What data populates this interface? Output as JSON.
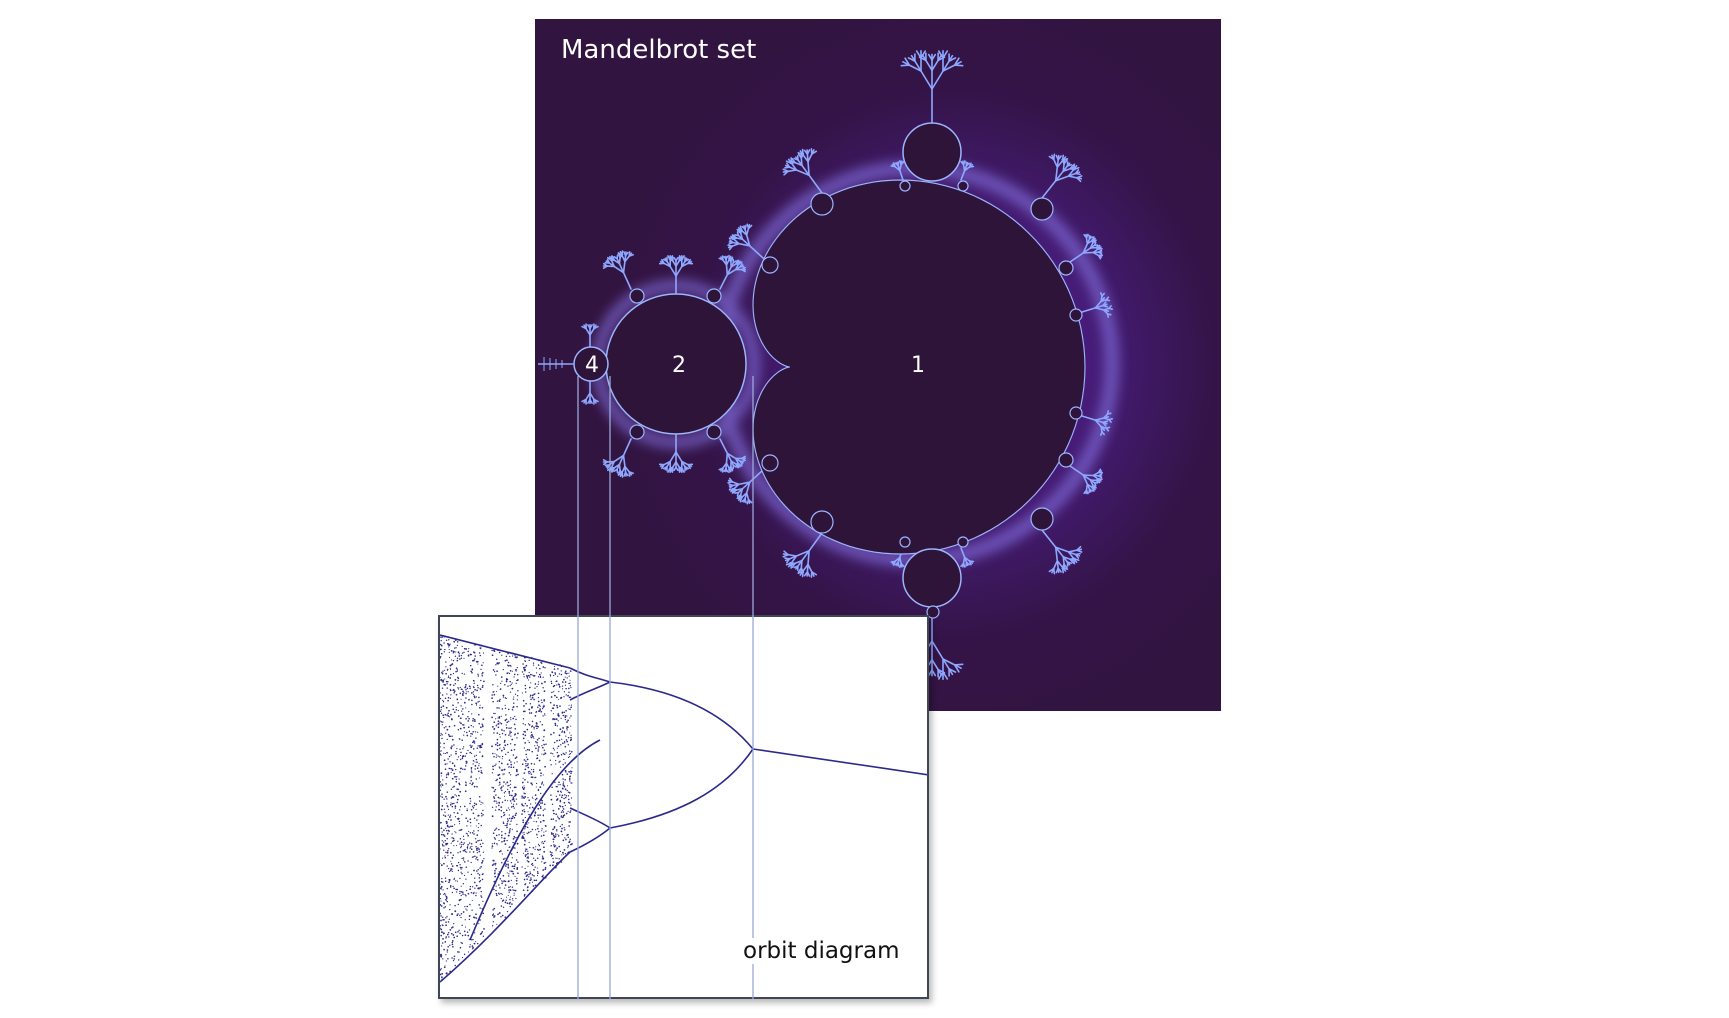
{
  "mandelbrot": {
    "title": "Mandelbrot set",
    "bulb_labels": [
      "1",
      "2",
      "4"
    ]
  },
  "orbit": {
    "title": "orbit diagram"
  },
  "colors": {
    "set_interior": "#2e1439",
    "background_outer": "#321440",
    "background_glow": "#5a2690",
    "fractal_edge": "#8fa8ff",
    "orbit_ink": "#2b2a8a",
    "guide_line": "#9aa8d8"
  }
}
